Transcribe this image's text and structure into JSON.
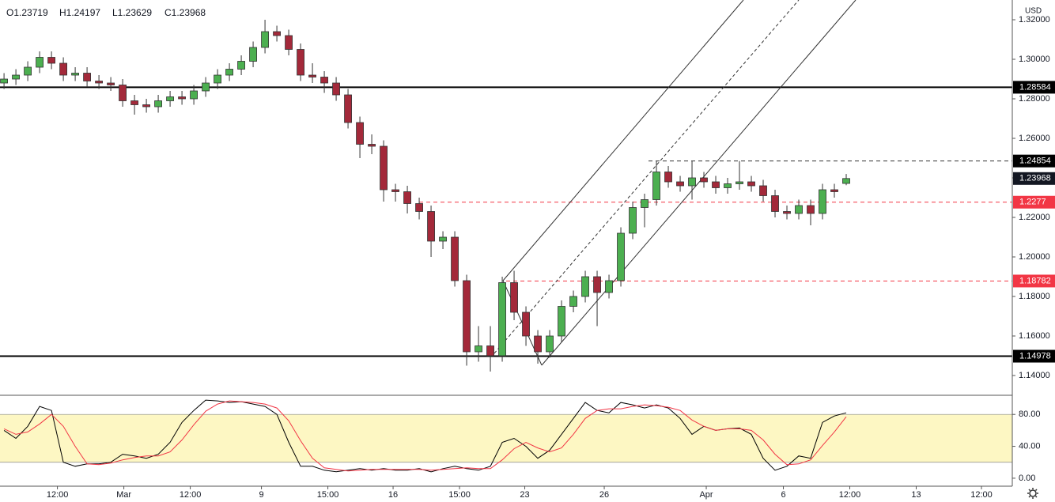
{
  "chart_data": {
    "type": "candlestick",
    "ohlc_labels": [
      "O1.23719",
      "H1.24197",
      "L1.23629",
      "C1.23968"
    ],
    "currency": "USD",
    "up_color": "#4caf50",
    "down_color": "#a3293a",
    "xlim": [
      -0.34,
      85
    ],
    "xticks": [
      {
        "value": 4.5,
        "label": "12:00"
      },
      {
        "value": 10.1,
        "label": "Mar"
      },
      {
        "value": 15.7,
        "label": "12:00"
      },
      {
        "value": 21.7,
        "label": "9"
      },
      {
        "value": 27.3,
        "label": "15:00"
      },
      {
        "value": 32.8,
        "label": "16"
      },
      {
        "value": 38.4,
        "label": "15:00"
      },
      {
        "value": 43.9,
        "label": "23"
      },
      {
        "value": 50.6,
        "label": "26"
      },
      {
        "value": 59.2,
        "label": "Apr"
      },
      {
        "value": 65.7,
        "label": "6"
      },
      {
        "value": 71.3,
        "label": "12:00"
      },
      {
        "value": 76.9,
        "label": "13"
      },
      {
        "value": 82.4,
        "label": "12:00"
      }
    ],
    "ylim": [
      1.13,
      1.33
    ],
    "yticks": [
      {
        "value": 1.14,
        "label": "1.14000"
      },
      {
        "value": 1.16,
        "label": "1.16000"
      },
      {
        "value": 1.18,
        "label": "1.18000"
      },
      {
        "value": 1.2,
        "label": "1.20000"
      },
      {
        "value": 1.22,
        "label": "1.22000"
      },
      {
        "value": 1.24,
        "label": "1.24000"
      },
      {
        "value": 1.26,
        "label": "1.26000"
      },
      {
        "value": 1.28,
        "label": "1.28000"
      },
      {
        "value": 1.3,
        "label": "1.30000"
      },
      {
        "value": 1.32,
        "label": "1.32000"
      }
    ],
    "levels": [
      {
        "value": 1.28584,
        "color": "#000000",
        "style": "solid"
      },
      {
        "value": 1.24854,
        "color": "#333333",
        "style": "dashed"
      },
      {
        "value": 1.2277,
        "color": "#f23645",
        "style": "dashed"
      },
      {
        "value": 1.18782,
        "color": "#f23645",
        "style": "dashed"
      },
      {
        "value": 1.14978,
        "color": "#000000",
        "style": "solid"
      }
    ],
    "open": [
      1.288,
      1.29,
      1.292,
      1.296,
      1.301,
      1.298,
      1.292,
      1.293,
      1.289,
      1.288,
      1.287,
      1.279,
      1.277,
      1.276,
      1.279,
      1.281,
      1.28,
      1.284,
      1.288,
      1.292,
      1.295,
      1.299,
      1.306,
      1.314,
      1.312,
      1.305,
      1.292,
      1.291,
      1.288,
      1.282,
      1.268,
      1.257,
      1.256,
      1.234,
      1.233,
      1.227,
      1.223,
      1.208,
      1.21,
      1.188,
      1.152,
      1.155,
      1.15,
      1.187,
      1.172,
      1.16,
      1.152,
      1.16,
      1.175,
      1.18,
      1.19,
      1.182,
      1.188,
      1.212,
      1.225,
      1.229,
      1.243,
      1.238,
      1.236,
      1.24,
      1.238,
      1.235,
      1.237,
      1.238,
      1.236,
      1.231,
      1.223,
      1.222,
      1.226,
      1.222,
      1.234,
      1.23719
    ],
    "high": [
      1.293,
      1.295,
      1.299,
      1.304,
      1.304,
      1.301,
      1.296,
      1.296,
      1.292,
      1.291,
      1.29,
      1.282,
      1.28,
      1.282,
      1.284,
      1.284,
      1.287,
      1.291,
      1.295,
      1.298,
      1.302,
      1.309,
      1.32,
      1.317,
      1.315,
      1.308,
      1.298,
      1.294,
      1.291,
      1.285,
      1.271,
      1.262,
      1.259,
      1.237,
      1.236,
      1.23,
      1.226,
      1.213,
      1.213,
      1.191,
      1.165,
      1.165,
      1.19,
      1.193,
      1.175,
      1.163,
      1.163,
      1.178,
      1.183,
      1.193,
      1.193,
      1.191,
      1.215,
      1.228,
      1.232,
      1.2485,
      1.246,
      1.241,
      1.2485,
      1.243,
      1.241,
      1.24,
      1.2485,
      1.241,
      1.239,
      1.234,
      1.226,
      1.229,
      1.229,
      1.237,
      1.237,
      1.24197
    ],
    "low": [
      1.285,
      1.287,
      1.289,
      1.293,
      1.295,
      1.289,
      1.289,
      1.286,
      1.285,
      1.284,
      1.276,
      1.272,
      1.273,
      1.273,
      1.276,
      1.277,
      1.277,
      1.281,
      1.285,
      1.289,
      1.292,
      1.296,
      1.303,
      1.309,
      1.302,
      1.289,
      1.288,
      1.283,
      1.279,
      1.265,
      1.25,
      1.252,
      1.228,
      1.228,
      1.222,
      1.219,
      1.2,
      1.204,
      1.185,
      1.145,
      1.147,
      1.142,
      1.147,
      1.168,
      1.155,
      1.146,
      1.149,
      1.157,
      1.172,
      1.177,
      1.165,
      1.179,
      1.185,
      1.209,
      1.215,
      1.226,
      1.235,
      1.233,
      1.229,
      1.235,
      1.232,
      1.232,
      1.234,
      1.233,
      1.228,
      1.22,
      1.219,
      1.219,
      1.216,
      1.219,
      1.23,
      1.23629
    ],
    "close": [
      1.29,
      1.292,
      1.296,
      1.301,
      1.298,
      1.292,
      1.293,
      1.289,
      1.288,
      1.287,
      1.279,
      1.277,
      1.276,
      1.279,
      1.281,
      1.28,
      1.284,
      1.288,
      1.292,
      1.295,
      1.299,
      1.306,
      1.314,
      1.312,
      1.305,
      1.292,
      1.291,
      1.288,
      1.282,
      1.268,
      1.257,
      1.256,
      1.234,
      1.233,
      1.227,
      1.223,
      1.208,
      1.21,
      1.188,
      1.152,
      1.155,
      1.15,
      1.187,
      1.172,
      1.16,
      1.152,
      1.16,
      1.175,
      1.18,
      1.19,
      1.182,
      1.188,
      1.212,
      1.225,
      1.229,
      1.243,
      1.238,
      1.236,
      1.24,
      1.238,
      1.235,
      1.237,
      1.238,
      1.236,
      1.231,
      1.223,
      1.222,
      1.226,
      1.222,
      1.234,
      1.233,
      1.23968
    ],
    "stochastic": {
      "ylim": [
        -10,
        104
      ],
      "yticks": [
        {
          "value": 0,
          "label": "0.00"
        },
        {
          "value": 40,
          "label": "40.00"
        },
        {
          "value": 80,
          "label": "80.00"
        }
      ],
      "bands": [
        20,
        80
      ],
      "band_color": "#fdf7c3",
      "k_color": "#000000",
      "d_color": "#f23645",
      "k": [
        60,
        50,
        65,
        90,
        85,
        20,
        15,
        18,
        18,
        20,
        30,
        28,
        25,
        30,
        45,
        70,
        85,
        98,
        97,
        95,
        96,
        93,
        90,
        80,
        45,
        15,
        15,
        10,
        8,
        10,
        12,
        10,
        12,
        10,
        10,
        12,
        8,
        12,
        15,
        12,
        10,
        15,
        45,
        50,
        40,
        25,
        35,
        55,
        75,
        95,
        85,
        82,
        95,
        92,
        88,
        92,
        88,
        75,
        55,
        65,
        60,
        62,
        63,
        55,
        25,
        10,
        15,
        28,
        25,
        70,
        78,
        82
      ],
      "d": [
        62,
        55,
        58,
        68,
        80,
        65,
        40,
        18,
        17,
        19,
        23,
        26,
        28,
        28,
        33,
        48,
        67,
        84,
        93,
        97,
        96,
        95,
        93,
        88,
        72,
        47,
        25,
        13,
        11,
        9,
        10,
        11,
        11,
        11,
        11,
        11,
        10,
        11,
        12,
        13,
        12,
        12,
        23,
        37,
        45,
        38,
        33,
        38,
        55,
        75,
        85,
        87,
        87,
        90,
        92,
        91,
        89,
        85,
        73,
        65,
        60,
        62,
        62,
        60,
        48,
        30,
        17,
        18,
        23,
        41,
        58,
        77
      ]
    }
  }
}
